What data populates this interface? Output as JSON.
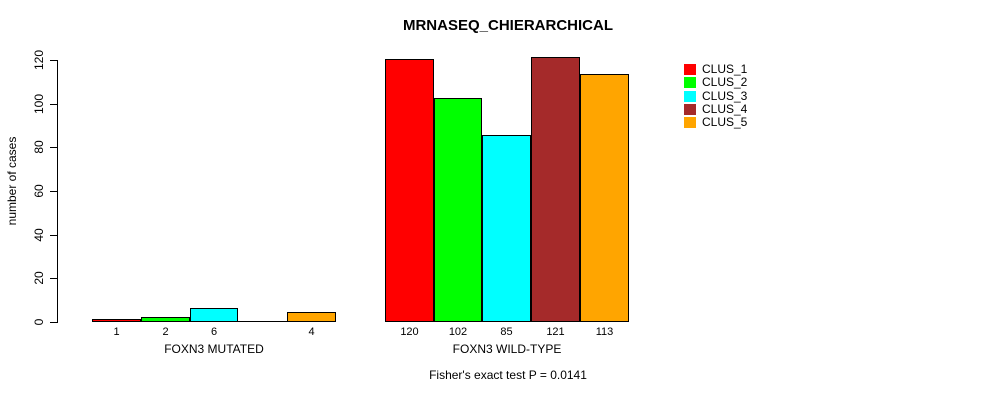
{
  "figure": {
    "background": "#FFFFFF",
    "axis_color": "#000000"
  },
  "chart_data": {
    "type": "bar",
    "title": "MRNASEQ_CHIERARCHICAL",
    "ylabel": "number of cases",
    "xlabel": "",
    "ylim": [
      0,
      120
    ],
    "yticks": [
      0,
      20,
      40,
      60,
      80,
      100,
      120
    ],
    "grid": false,
    "legend_position": "right",
    "categories": [
      "FOXN3 MUTATED",
      "FOXN3 WILD-TYPE"
    ],
    "series": [
      {
        "name": "CLUS_1",
        "color": "#FF0000",
        "values": [
          1,
          120
        ]
      },
      {
        "name": "CLUS_2",
        "color": "#00FF00",
        "values": [
          2,
          102
        ]
      },
      {
        "name": "CLUS_3",
        "color": "#00FFFF",
        "values": [
          6,
          85
        ]
      },
      {
        "name": "CLUS_4",
        "color": "#A52A2A",
        "values": [
          0,
          121
        ]
      },
      {
        "name": "CLUS_5",
        "color": "#FFA500",
        "values": [
          4,
          113
        ]
      }
    ],
    "bar_value_labels": [
      [
        "1",
        "2",
        "6",
        "",
        "4"
      ],
      [
        "120",
        "102",
        "85",
        "121",
        "113"
      ]
    ],
    "footnote": "Fisher's exact test P = 0.0141"
  }
}
